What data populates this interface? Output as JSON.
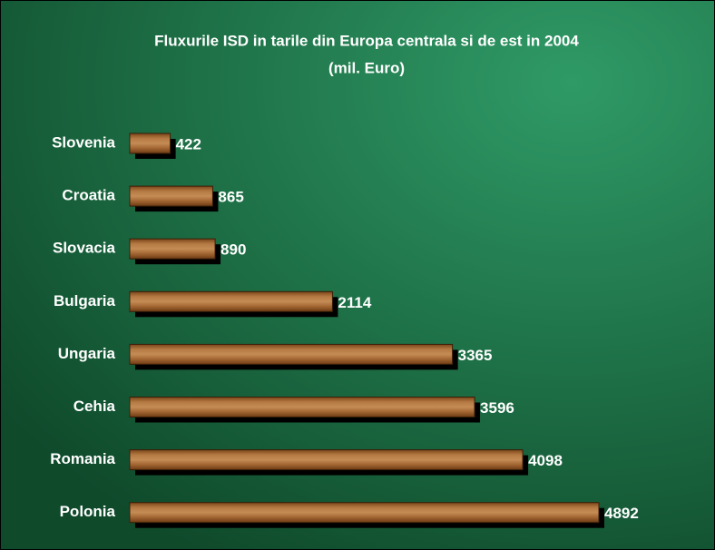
{
  "chart_data": {
    "type": "bar",
    "orientation": "horizontal",
    "title": "Fluxurile ISD in tarile din Europa centrala si de est in 2004",
    "subtitle": "(mil. Euro)",
    "categories": [
      "Slovenia",
      "Croatia",
      "Slovacia",
      "Bulgaria",
      "Ungaria",
      "Cehia",
      "Romania",
      "Polonia"
    ],
    "values": [
      422,
      865,
      890,
      2114,
      3365,
      3596,
      4098,
      4892
    ],
    "color": "#a8682f"
  }
}
